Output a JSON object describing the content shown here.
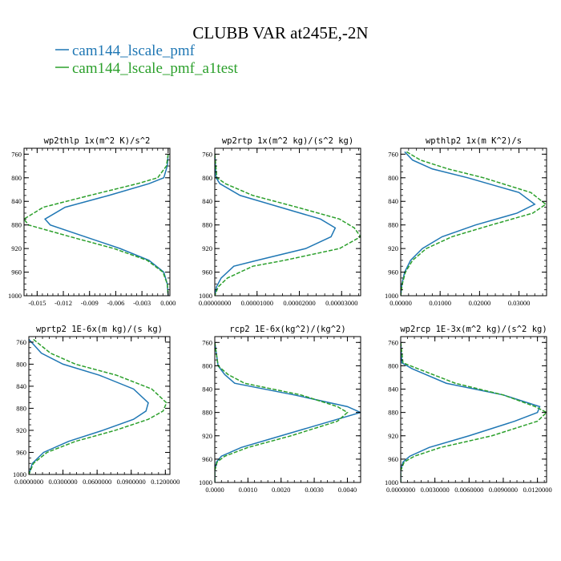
{
  "figure": {
    "title": "CLUBB VAR at245E,-2N",
    "legend": [
      {
        "label": "cam144_lscale_pmf",
        "color": "#1f77b4",
        "dash": "solid"
      },
      {
        "label": "cam144_lscale_pmf_a1test",
        "color": "#2ca02c",
        "dash": "dashed"
      }
    ]
  },
  "chart_data": [
    {
      "type": "line",
      "title": "wp2thlp  1x(m^2 K)/s^2",
      "xlim": [
        -0.0165,
        0.0002
      ],
      "ylim": [
        1000,
        750
      ],
      "xticks": [
        -0.015,
        -0.012,
        -0.009,
        -0.006,
        -0.003,
        0.0
      ],
      "xtick_labels": [
        "-0.015",
        "-0.012",
        "-0.009",
        "-0.006",
        "-0.003",
        "0.000"
      ],
      "yticks": [
        760,
        800,
        840,
        880,
        920,
        960,
        1000
      ],
      "y": [
        760,
        780,
        800,
        810,
        830,
        850,
        870,
        880,
        900,
        920,
        940,
        960,
        980,
        1000
      ],
      "series": [
        {
          "name": "cam144_lscale_pmf",
          "color": "#1f77b4",
          "dash": "solid",
          "x": [
            0.0,
            -0.0001,
            -0.0005,
            -0.0022,
            -0.0068,
            -0.0118,
            -0.0141,
            -0.0135,
            -0.0095,
            -0.0055,
            -0.0022,
            -0.0005,
            -0.0001,
            0.0
          ]
        },
        {
          "name": "cam144_lscale_pmf_a1test",
          "color": "#2ca02c",
          "dash": "dashed",
          "x": [
            0.0,
            -0.0002,
            -0.0012,
            -0.0035,
            -0.009,
            -0.0143,
            -0.0165,
            -0.016,
            -0.0112,
            -0.0062,
            -0.0024,
            -0.0006,
            -0.0001,
            0.0
          ]
        }
      ]
    },
    {
      "type": "line",
      "title": "wp2rtp  1x(m^2 kg)/(s^2 kg)",
      "xlim": [
        0.0,
        3.45e-05
      ],
      "ylim": [
        1000,
        750
      ],
      "xticks": [
        0.0,
        1e-05,
        2e-05,
        3e-05
      ],
      "xtick_labels": [
        "0.00000000",
        "0.00001000",
        "0.00002000",
        "0.00003000"
      ],
      "yticks": [
        760,
        800,
        840,
        880,
        920,
        960,
        1000
      ],
      "y": [
        760,
        800,
        810,
        830,
        850,
        870,
        885,
        900,
        920,
        940,
        950,
        970,
        985,
        1000
      ],
      "series": [
        {
          "name": "cam144_lscale_pmf",
          "color": "#1f77b4",
          "dash": "solid",
          "x": [
            0.0,
            3e-07,
            1.2e-06,
            6e-06,
            1.55e-05,
            2.5e-05,
            2.85e-05,
            2.75e-05,
            2.15e-05,
            1e-05,
            4.5e-06,
            1.5e-06,
            4e-07,
            0.0
          ]
        },
        {
          "name": "cam144_lscale_pmf_a1test",
          "color": "#2ca02c",
          "dash": "dashed",
          "x": [
            0.0,
            5e-07,
            2.5e-06,
            9e-06,
            1.95e-05,
            2.95e-05,
            3.3e-05,
            3.45e-05,
            2.95e-05,
            1.65e-05,
            9e-06,
            3e-06,
            8e-07,
            0.0
          ]
        }
      ]
    },
    {
      "type": "line",
      "title": "wpthlp2  1x(m K^2)/s",
      "xlim": [
        0.0,
        0.037
      ],
      "ylim": [
        1000,
        750
      ],
      "xticks": [
        0.0,
        0.01,
        0.02,
        0.03
      ],
      "xtick_labels": [
        "0.00000",
        "0.01000",
        "0.02000",
        "0.03000"
      ],
      "yticks": [
        760,
        800,
        840,
        880,
        920,
        960,
        1000
      ],
      "y": [
        756,
        770,
        785,
        800,
        825,
        845,
        860,
        880,
        900,
        920,
        940,
        960,
        980,
        1000
      ],
      "series": [
        {
          "name": "cam144_lscale_pmf",
          "color": "#1f77b4",
          "dash": "solid",
          "x": [
            0.001,
            0.003,
            0.008,
            0.017,
            0.03,
            0.034,
            0.0295,
            0.019,
            0.0105,
            0.0055,
            0.0025,
            0.001,
            0.0003,
            0.0
          ]
        },
        {
          "name": "cam144_lscale_pmf_a1test",
          "color": "#2ca02c",
          "dash": "dashed",
          "x": [
            0.0015,
            0.005,
            0.012,
            0.021,
            0.033,
            0.0368,
            0.0335,
            0.023,
            0.013,
            0.0065,
            0.003,
            0.0012,
            0.0004,
            0.0
          ]
        }
      ]
    },
    {
      "type": "line",
      "title": "wprtp2  1E-6x(m kg)/(s kg)",
      "xlim": [
        0.0,
        0.124
      ],
      "ylim": [
        1000,
        750
      ],
      "xticks": [
        0.0,
        0.03,
        0.06,
        0.09,
        0.12
      ],
      "xtick_labels": [
        "0.0000000",
        "0.0300000",
        "0.0600000",
        "0.0900000",
        "0.1200000"
      ],
      "yticks": [
        760,
        800,
        840,
        880,
        920,
        960,
        1000
      ],
      "y": [
        755,
        780,
        800,
        820,
        845,
        870,
        885,
        900,
        920,
        940,
        960,
        980,
        1000
      ],
      "series": [
        {
          "name": "cam144_lscale_pmf",
          "color": "#1f77b4",
          "dash": "solid",
          "x": [
            0.0,
            0.011,
            0.03,
            0.062,
            0.092,
            0.105,
            0.103,
            0.092,
            0.065,
            0.035,
            0.013,
            0.003,
            0.0
          ]
        },
        {
          "name": "cam144_lscale_pmf_a1test",
          "color": "#2ca02c",
          "dash": "dashed",
          "x": [
            0.004,
            0.019,
            0.041,
            0.077,
            0.108,
            0.121,
            0.118,
            0.105,
            0.076,
            0.041,
            0.016,
            0.004,
            0.0
          ]
        }
      ]
    },
    {
      "type": "line",
      "title": "rcp2  1E-6x(kg^2)/(kg^2)",
      "xlim": [
        0.0,
        0.0044
      ],
      "ylim": [
        1000,
        750
      ],
      "xticks": [
        0.0,
        0.001,
        0.002,
        0.003,
        0.004
      ],
      "xtick_labels": [
        "0.0000",
        "0.0010",
        "0.0020",
        "0.0030",
        "0.0040"
      ],
      "yticks": [
        760,
        800,
        840,
        880,
        920,
        960,
        1000
      ],
      "y": [
        760,
        800,
        815,
        830,
        850,
        870,
        880,
        895,
        920,
        940,
        955,
        965,
        980,
        1000
      ],
      "series": [
        {
          "name": "cam144_lscale_pmf",
          "color": "#1f77b4",
          "dash": "solid",
          "x": [
            0.0,
            0.0001,
            0.0003,
            0.0006,
            0.0024,
            0.004,
            0.0044,
            0.0035,
            0.002,
            0.0008,
            0.0002,
            5e-05,
            0.0,
            0.0
          ]
        },
        {
          "name": "cam144_lscale_pmf_a1test",
          "color": "#2ca02c",
          "dash": "dashed",
          "x": [
            0.0,
            0.0001,
            0.0004,
            0.0009,
            0.0026,
            0.0037,
            0.004,
            0.0037,
            0.0023,
            0.001,
            0.0003,
            7e-05,
            0.0,
            0.0
          ]
        }
      ]
    },
    {
      "type": "line",
      "title": "wp2rcp  1E-3x(m^2 kg)/(s^2 kg)",
      "xlim": [
        0.0,
        0.0128
      ],
      "ylim": [
        1000,
        750
      ],
      "xticks": [
        0.0,
        0.003,
        0.006,
        0.009,
        0.012
      ],
      "xtick_labels": [
        "0.0000000",
        "0.0030000",
        "0.0060000",
        "0.0090000",
        "0.0120000"
      ],
      "yticks": [
        760,
        800,
        840,
        880,
        920,
        960,
        1000
      ],
      "y": [
        760,
        795,
        805,
        830,
        850,
        870,
        880,
        895,
        920,
        940,
        955,
        965,
        980,
        1000
      ],
      "series": [
        {
          "name": "cam144_lscale_pmf",
          "color": "#1f77b4",
          "dash": "solid",
          "x": [
            0.0,
            0.0001,
            0.001,
            0.004,
            0.009,
            0.0122,
            0.012,
            0.01,
            0.006,
            0.0025,
            0.0008,
            0.0002,
            0.0,
            0.0
          ]
        },
        {
          "name": "cam144_lscale_pmf_a1test",
          "color": "#2ca02c",
          "dash": "dashed",
          "x": [
            0.0,
            0.0002,
            0.0015,
            0.0048,
            0.009,
            0.0118,
            0.0128,
            0.012,
            0.008,
            0.0035,
            0.0012,
            0.0003,
            0.0,
            0.0
          ]
        }
      ]
    }
  ]
}
